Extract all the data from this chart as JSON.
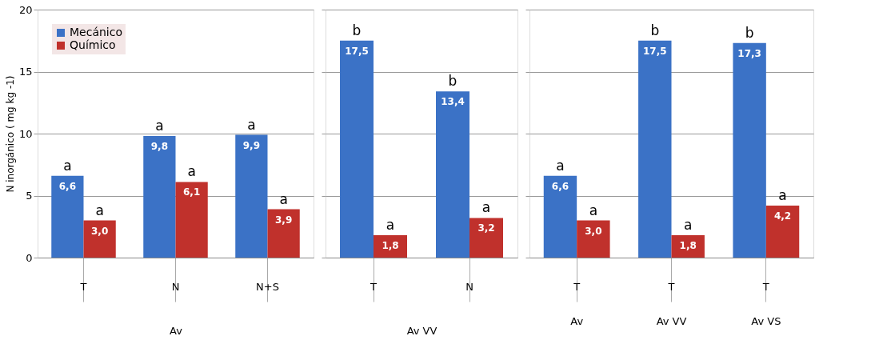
{
  "chart_data": [
    {
      "type": "bar",
      "categories": [
        "T",
        "N",
        "N+S"
      ],
      "xlabel": "Av",
      "ylabel": "N inorgánico ( mg kg -1)",
      "ylim": [
        0,
        20
      ],
      "yticks": [
        0,
        5,
        10,
        15,
        20
      ],
      "grid": "y",
      "legend": "top left",
      "series": [
        {
          "name": "Mecánico",
          "color": "#3b72c6",
          "values": [
            6.6,
            9.8,
            9.9
          ],
          "value_labels": [
            "6,6",
            "9,8",
            "9,9"
          ]
        },
        {
          "name": "Químico",
          "color": "#c0312c",
          "values": [
            3.0,
            6.1,
            3.9
          ],
          "value_labels": [
            "3,0",
            "6,1",
            "3,9"
          ]
        }
      ],
      "annotations": [
        {
          "text": "a",
          "x": "T",
          "y": 6.6
        },
        {
          "text": "a",
          "x": "N",
          "y": 9.8
        },
        {
          "text": "a",
          "x": "N+S",
          "y": 9.9
        },
        {
          "text": "a",
          "x": "T",
          "y": 3.0
        },
        {
          "text": "a",
          "x": "N",
          "y": 6.1
        },
        {
          "text": "a",
          "x": "N+S",
          "y": 3.9
        }
      ]
    },
    {
      "type": "bar",
      "categories": [
        "T",
        "N"
      ],
      "xlabel": "Av VV",
      "ylim": [
        0,
        20
      ],
      "yticks": [
        0,
        5,
        10,
        15,
        20
      ],
      "grid": "y",
      "tick_labels": "x",
      "series": [
        {
          "color": "#3b72c6",
          "values": [
            17.5,
            13.4
          ],
          "value_labels": [
            "17,5",
            "13,4"
          ]
        },
        {
          "color": "#c0312c",
          "values": [
            1.8,
            3.2
          ],
          "value_labels": [
            "1,8",
            "3,2"
          ]
        }
      ],
      "annotations": [
        {
          "text": "b",
          "x": "T",
          "y": 17.5
        },
        {
          "text": "b",
          "x": "N",
          "y": 13.4
        },
        {
          "text": "a",
          "x": "T",
          "y": 1.8
        },
        {
          "text": "a",
          "x": "N",
          "y": 3.2
        }
      ]
    },
    {
      "type": "bar",
      "categories": [
        "T",
        "T",
        "T"
      ],
      "ylim": [
        0,
        20
      ],
      "yticks": [
        0,
        5,
        10,
        15,
        20
      ],
      "grid": "y",
      "tick_labels": "x",
      "series": [
        {
          "color": "#3b72c6",
          "values": [
            6.6,
            17.5,
            17.3
          ],
          "value_labels": [
            "6,6",
            "17,5",
            "17,3"
          ]
        },
        {
          "color": "#c0312c",
          "values": [
            3.0,
            1.8,
            4.2
          ],
          "value_labels": [
            "3,0",
            "1,8",
            "4,2"
          ]
        }
      ],
      "annotations": [
        "a",
        "b",
        "b",
        "a",
        "a",
        "a",
        "Av",
        "Av VV",
        "Av VS"
      ]
    }
  ]
}
